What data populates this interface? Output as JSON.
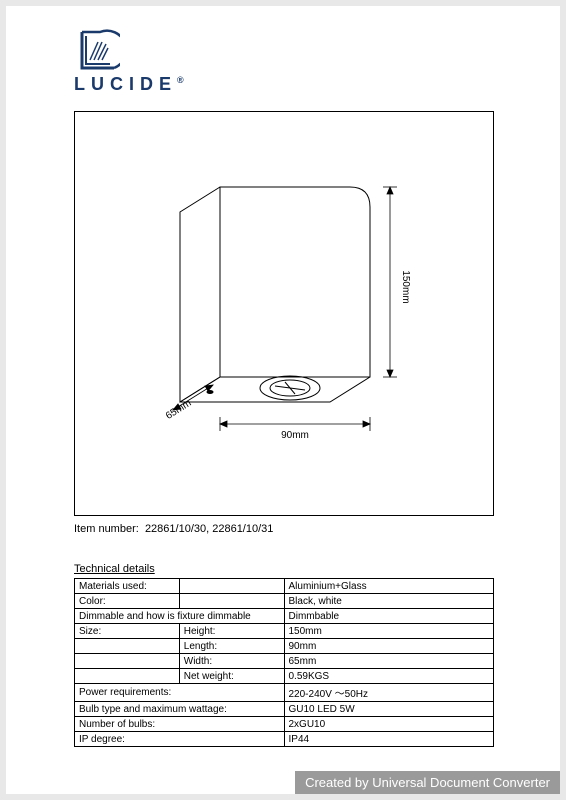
{
  "logo": {
    "text": "LUCIDE",
    "reg": "®",
    "color": "#1a3a6b"
  },
  "diagram": {
    "dim_height": "150mm",
    "dim_width": "90mm",
    "dim_depth": "65mm",
    "line_color": "#000000",
    "line_width": 1
  },
  "item_number": {
    "label": "Item number:",
    "value": "22861/10/30, 22861/10/31"
  },
  "tech_details_title": "Technical details",
  "specs": [
    {
      "a": "Materials used:",
      "b": "",
      "c": "Aluminium+Glass"
    },
    {
      "a": "Color:",
      "b": "",
      "c": "Black, white"
    },
    {
      "a": "Dimmable and how is fixture dimmable",
      "b": "",
      "c": "Dimmbable",
      "span": true
    },
    {
      "a": "Size:",
      "b": "Height:",
      "c": "150mm"
    },
    {
      "a": "",
      "b": "Length:",
      "c": "90mm"
    },
    {
      "a": "",
      "b": "Width:",
      "c": "65mm"
    },
    {
      "a": "",
      "b": "Net weight:",
      "c": "0.59KGS"
    },
    {
      "a": "Power requirements:",
      "b": "",
      "c": "220-240V ～50Hz",
      "span": true
    },
    {
      "a": "Bulb type and maximum wattage:",
      "b": "",
      "c": "GU10 LED 5W",
      "span": true
    },
    {
      "a": "Number of bulbs:",
      "b": "",
      "c": "2xGU10",
      "span": true
    },
    {
      "a": "IP degree:",
      "b": "",
      "c": "IP44",
      "span": true
    }
  ],
  "watermark": "Created by Universal Document Converter"
}
